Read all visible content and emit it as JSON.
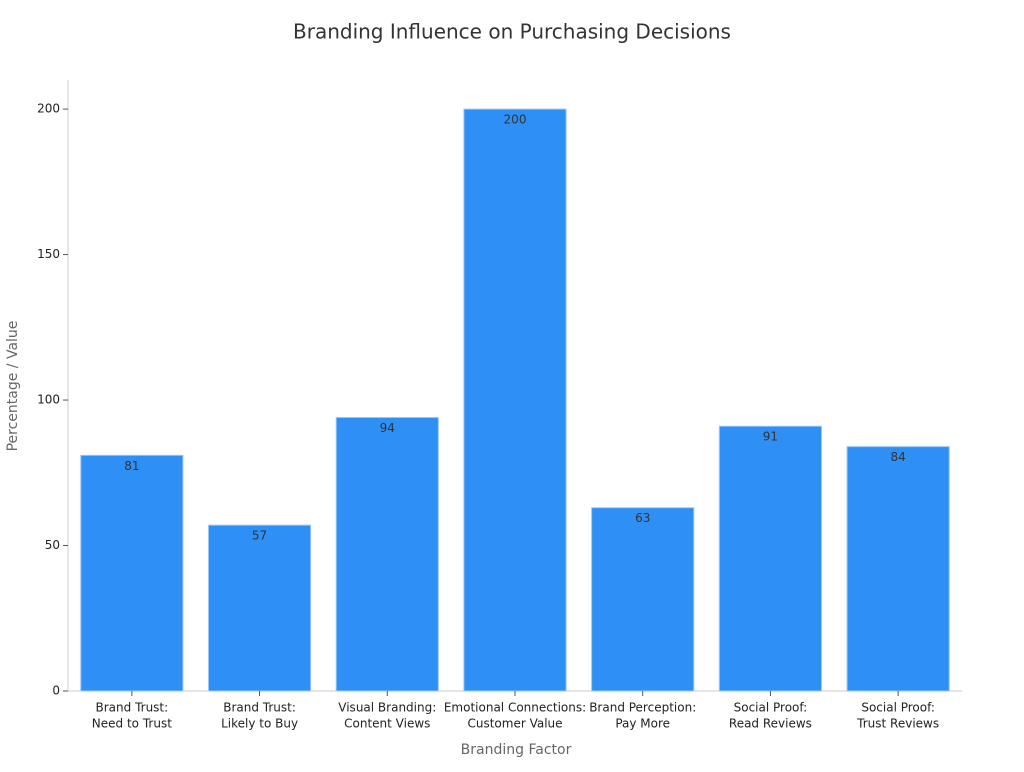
{
  "chart_data": {
    "type": "bar",
    "title": "Branding Influence on Purchasing Decisions",
    "x_label": "Branding Factor",
    "y_label": "Percentage / Value",
    "categories": [
      [
        "Brand Trust:",
        "Need to Trust"
      ],
      [
        "Brand Trust:",
        "Likely to Buy"
      ],
      [
        "Visual Branding:",
        "Content Views"
      ],
      [
        "Emotional Connections:",
        "Customer Value"
      ],
      [
        "Brand Perception:",
        "Pay More"
      ],
      [
        "Social Proof:",
        "Read Reviews"
      ],
      [
        "Social Proof:",
        "Trust Reviews"
      ]
    ],
    "values": [
      81,
      57,
      94,
      200,
      63,
      91,
      84
    ],
    "color": "#2e90f5",
    "ylim": [
      0,
      210
    ],
    "yticks": [
      0,
      50,
      100,
      150,
      200
    ],
    "grid": false
  }
}
